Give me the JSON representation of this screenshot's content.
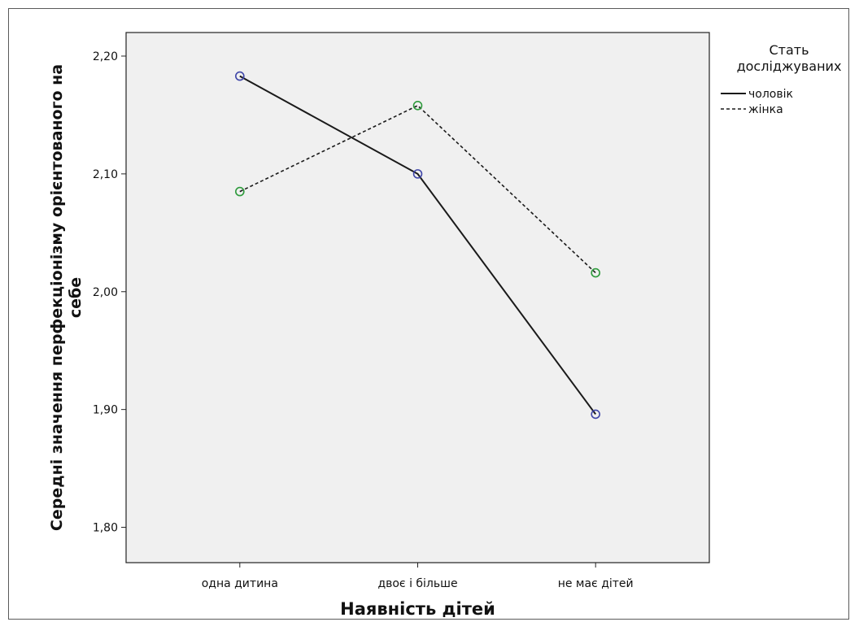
{
  "chart_data": {
    "type": "line",
    "xlabel": "Наявність дітей",
    "ylabel": "Середні значення перфекціонізму орієнтованого на себе",
    "ylim": [
      1.77,
      2.22
    ],
    "yticks": [
      1.8,
      1.9,
      2.0,
      2.1,
      2.2
    ],
    "ytick_labels": [
      "1,80",
      "1,90",
      "2,00",
      "2,10",
      "2,20"
    ],
    "categories": [
      "одна дитина",
      "двоє і більше",
      "не має дітей"
    ],
    "series": [
      {
        "name": "чоловік",
        "values": [
          2.183,
          2.1,
          1.896
        ],
        "line_style": "solid",
        "marker_color": "#3f46a8"
      },
      {
        "name": "жінка",
        "values": [
          2.085,
          2.158,
          2.016
        ],
        "line_style": "dashed",
        "marker_color": "#2e9a3c"
      }
    ],
    "legend": {
      "title_lines": [
        "Стать",
        "досліджуваних"
      ],
      "placement": "top-right"
    },
    "plot_background": "#f0f0f0",
    "grid": false
  }
}
